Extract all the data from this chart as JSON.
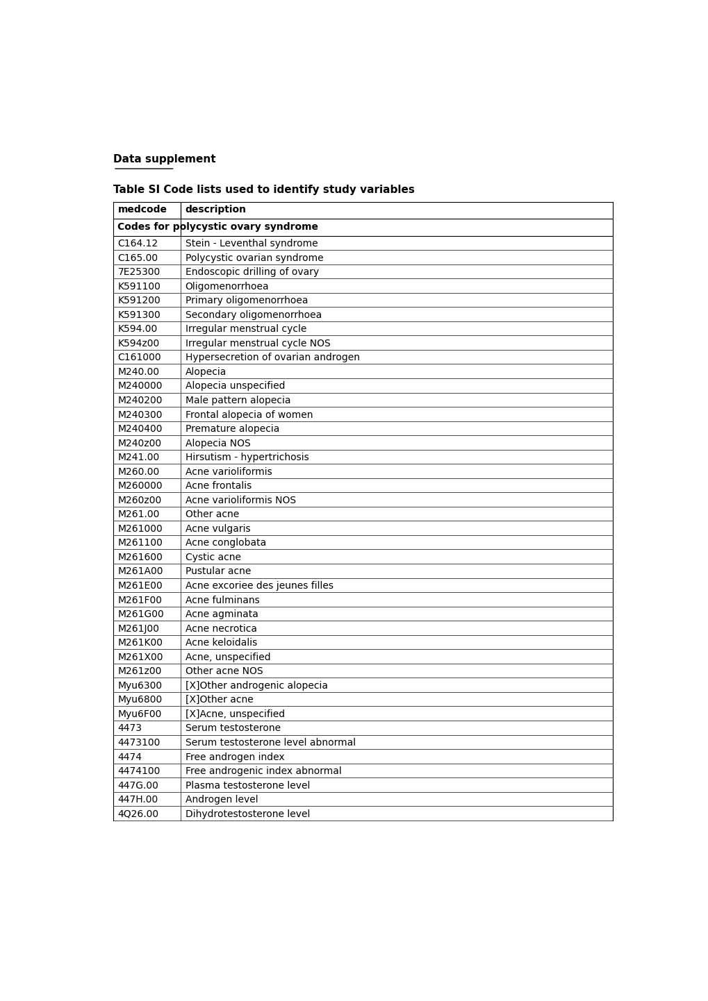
{
  "page_title": "Data supplement",
  "table_title": "Table SI Code lists used to identify study variables",
  "col1_header": "medcode",
  "col2_header": "description",
  "section_header": "Codes for polycystic ovary syndrome",
  "rows": [
    [
      "C164.12",
      "Stein - Leventhal syndrome"
    ],
    [
      "C165.00",
      "Polycystic ovarian syndrome"
    ],
    [
      "7E25300",
      "Endoscopic drilling of ovary"
    ],
    [
      "K591100",
      "Oligomenorrhoea"
    ],
    [
      "K591200",
      "Primary oligomenorrhoea"
    ],
    [
      "K591300",
      "Secondary oligomenorrhoea"
    ],
    [
      "K594.00",
      "Irregular menstrual cycle"
    ],
    [
      "K594z00",
      "Irregular menstrual cycle NOS"
    ],
    [
      "C161000",
      "Hypersecretion of ovarian androgen"
    ],
    [
      "M240.00",
      "Alopecia"
    ],
    [
      "M240000",
      "Alopecia unspecified"
    ],
    [
      "M240200",
      "Male pattern alopecia"
    ],
    [
      "M240300",
      "Frontal alopecia of women"
    ],
    [
      "M240400",
      "Premature alopecia"
    ],
    [
      "M240z00",
      "Alopecia NOS"
    ],
    [
      "M241.00",
      "Hirsutism - hypertrichosis"
    ],
    [
      "M260.00",
      "Acne varioliformis"
    ],
    [
      "M260000",
      "Acne frontalis"
    ],
    [
      "M260z00",
      "Acne varioliformis NOS"
    ],
    [
      "M261.00",
      "Other acne"
    ],
    [
      "M261000",
      "Acne vulgaris"
    ],
    [
      "M261100",
      "Acne conglobata"
    ],
    [
      "M261600",
      "Cystic acne"
    ],
    [
      "M261A00",
      "Pustular acne"
    ],
    [
      "M261E00",
      "Acne excoriee des jeunes filles"
    ],
    [
      "M261F00",
      "Acne fulminans"
    ],
    [
      "M261G00",
      "Acne agminata"
    ],
    [
      "M261J00",
      "Acne necrotica"
    ],
    [
      "M261K00",
      "Acne keloidalis"
    ],
    [
      "M261X00",
      "Acne, unspecified"
    ],
    [
      "M261z00",
      "Other acne NOS"
    ],
    [
      "Myu6300",
      "[X]Other androgenic alopecia"
    ],
    [
      "Myu6800",
      "[X]Other acne"
    ],
    [
      "Myu6F00",
      "[X]Acne, unspecified"
    ],
    [
      "4473",
      "Serum testosterone"
    ],
    [
      "4473100",
      "Serum testosterone level abnormal"
    ],
    [
      "4474",
      "Free androgen index"
    ],
    [
      "4474100",
      "Free androgenic index abnormal"
    ],
    [
      "447G.00",
      "Plasma testosterone level"
    ],
    [
      "447H.00",
      "Androgen level"
    ],
    [
      "4Q26.00",
      "Dihydrotestosterone level"
    ]
  ],
  "background_color": "#ffffff",
  "cell_text_color": "#000000",
  "font_family": "DejaVu Sans",
  "page_title_fontsize": 11,
  "table_title_fontsize": 11,
  "header_fontsize": 10,
  "cell_fontsize": 10
}
